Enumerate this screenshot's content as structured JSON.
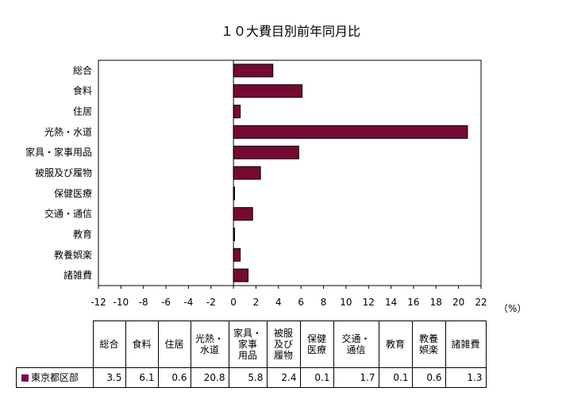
{
  "chart_data": {
    "type": "bar",
    "orientation": "horizontal",
    "title": "１０大費目別前年同月比",
    "unit_label": "（%）",
    "categories": [
      "総合",
      "食料",
      "住居",
      "光熱・水道",
      "家具・家事用品",
      "被服及び履物",
      "保健医療",
      "交通・通信",
      "教育",
      "教養娯楽",
      "諸雑費"
    ],
    "table_headers": [
      [
        "総合"
      ],
      [
        "食料"
      ],
      [
        "住居"
      ],
      [
        "光熱・",
        "水道"
      ],
      [
        "家具・",
        "家事",
        "用品"
      ],
      [
        "被服",
        "及び",
        "履物"
      ],
      [
        "保健",
        "医療"
      ],
      [
        "交通・",
        "通信"
      ],
      [
        "教育"
      ],
      [
        "教養",
        "娯楽"
      ],
      [
        "諸雑費"
      ]
    ],
    "series": [
      {
        "name": "東京都区部",
        "values": [
          3.5,
          6.1,
          0.6,
          20.8,
          5.8,
          2.4,
          0.1,
          1.7,
          0.1,
          0.6,
          1.3
        ]
      }
    ],
    "table_values": [
      "3.5",
      "6.1",
      "0.6",
      "20.8",
      "5.8",
      "2.4",
      "0.1",
      "1.7",
      "0.1",
      "0.6",
      "1.3"
    ],
    "xlim": [
      -12,
      22
    ],
    "xticks": [
      -12,
      -10,
      -8,
      -6,
      -4,
      -2,
      0,
      2,
      4,
      6,
      8,
      10,
      12,
      14,
      16,
      18,
      20,
      22
    ],
    "grid": false,
    "legend": "table",
    "colors": {
      "bar_fill": "#770a33",
      "bar_stroke": "#000000",
      "legend_key": "#770a55"
    }
  }
}
